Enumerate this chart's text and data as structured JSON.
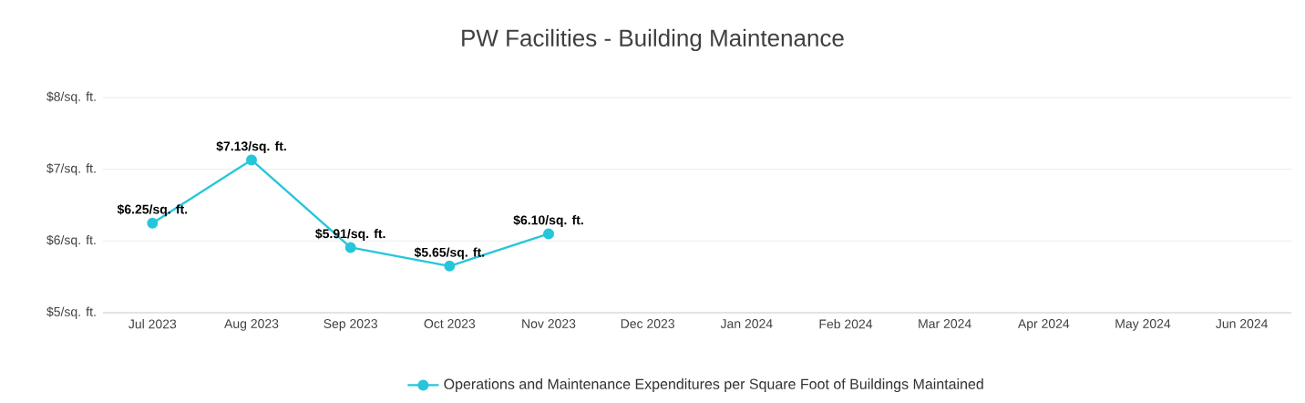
{
  "chart_data": {
    "type": "line",
    "title": "PW Facilities - Building Maintenance",
    "categories": [
      "Jul 2023",
      "Aug 2023",
      "Sep 2023",
      "Oct 2023",
      "Nov 2023",
      "Dec 2023",
      "Jan 2024",
      "Feb 2024",
      "Mar 2024",
      "Apr 2024",
      "May 2024",
      "Jun 2024"
    ],
    "series": [
      {
        "name": "Operations and Maintenance Expenditures per Square Foot of Buildings Maintained",
        "color": "#26c6da",
        "values": [
          6.25,
          7.13,
          5.91,
          5.65,
          6.1,
          null,
          null,
          null,
          null,
          null,
          null,
          null
        ],
        "value_labels": [
          "$6.25/sq. ft.",
          "$7.13/sq. ft.",
          "$5.91/sq. ft.",
          "$5.65/sq. ft.",
          "$6.10/sq. ft.",
          null,
          null,
          null,
          null,
          null,
          null,
          null
        ]
      }
    ],
    "ylim": [
      5,
      8
    ],
    "yticks": [
      {
        "value": 5,
        "label": "$5/sq. ft."
      },
      {
        "value": 6,
        "label": "$6/sq. ft."
      },
      {
        "value": 7,
        "label": "$7/sq. ft."
      },
      {
        "value": 8,
        "label": "$8/sq. ft."
      }
    ],
    "grid": "y",
    "legend": "bottom",
    "marker": "circle",
    "line_style": "solid"
  }
}
